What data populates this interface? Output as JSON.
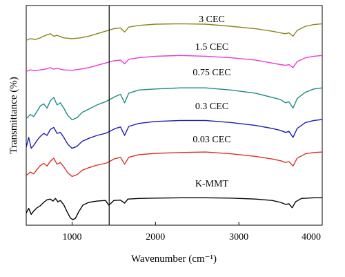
{
  "chart_data": {
    "type": "line",
    "title": "",
    "xlabel": "Wavenumber (cm⁻¹)",
    "ylabel": "Transmittance (%)",
    "xlim": [
      450,
      4000
    ],
    "x_ticks": [
      1000,
      2000,
      3000,
      4000
    ],
    "x_tick_labels": [
      "1000",
      "2000",
      "3000",
      "4000"
    ],
    "grid": false,
    "legend": "none",
    "reference_line_x": 1445,
    "series": [
      {
        "name": "K-MMT",
        "color": "#000000",
        "points": [
          [
            450,
            0.2
          ],
          [
            480,
            0.34
          ],
          [
            510,
            0.16
          ],
          [
            540,
            0.26
          ],
          [
            580,
            0.36
          ],
          [
            620,
            0.42
          ],
          [
            660,
            0.52
          ],
          [
            700,
            0.6
          ],
          [
            740,
            0.62
          ],
          [
            770,
            0.56
          ],
          [
            800,
            0.64
          ],
          [
            830,
            0.54
          ],
          [
            860,
            0.58
          ],
          [
            900,
            0.45
          ],
          [
            940,
            0.24
          ],
          [
            980,
            0.05
          ],
          [
            1010,
            0.0
          ],
          [
            1040,
            0.04
          ],
          [
            1080,
            0.24
          ],
          [
            1130,
            0.44
          ],
          [
            1200,
            0.52
          ],
          [
            1300,
            0.56
          ],
          [
            1400,
            0.58
          ],
          [
            1440,
            0.44
          ],
          [
            1460,
            0.48
          ],
          [
            1500,
            0.58
          ],
          [
            1580,
            0.59
          ],
          [
            1630,
            0.5
          ],
          [
            1670,
            0.62
          ],
          [
            1800,
            0.64
          ],
          [
            2000,
            0.65
          ],
          [
            2300,
            0.66
          ],
          [
            2600,
            0.66
          ],
          [
            2900,
            0.65
          ],
          [
            3200,
            0.62
          ],
          [
            3400,
            0.58
          ],
          [
            3500,
            0.52
          ],
          [
            3560,
            0.46
          ],
          [
            3600,
            0.48
          ],
          [
            3640,
            0.36
          ],
          [
            3680,
            0.54
          ],
          [
            3750,
            0.64
          ],
          [
            3900,
            0.66
          ],
          [
            4000,
            0.66
          ]
        ]
      },
      {
        "name": "0.03 CEC",
        "color": "#d8312a",
        "points": [
          [
            450,
            0.22
          ],
          [
            500,
            0.3
          ],
          [
            540,
            0.26
          ],
          [
            580,
            0.36
          ],
          [
            620,
            0.45
          ],
          [
            660,
            0.5
          ],
          [
            700,
            0.44
          ],
          [
            740,
            0.55
          ],
          [
            780,
            0.62
          ],
          [
            820,
            0.48
          ],
          [
            860,
            0.52
          ],
          [
            900,
            0.42
          ],
          [
            950,
            0.28
          ],
          [
            1000,
            0.2
          ],
          [
            1060,
            0.24
          ],
          [
            1120,
            0.34
          ],
          [
            1200,
            0.4
          ],
          [
            1300,
            0.46
          ],
          [
            1400,
            0.5
          ],
          [
            1450,
            0.54
          ],
          [
            1500,
            0.6
          ],
          [
            1580,
            0.64
          ],
          [
            1630,
            0.48
          ],
          [
            1680,
            0.64
          ],
          [
            1800,
            0.7
          ],
          [
            2000,
            0.73
          ],
          [
            2300,
            0.75
          ],
          [
            2600,
            0.76
          ],
          [
            2900,
            0.72
          ],
          [
            3200,
            0.66
          ],
          [
            3400,
            0.6
          ],
          [
            3500,
            0.56
          ],
          [
            3560,
            0.52
          ],
          [
            3600,
            0.54
          ],
          [
            3650,
            0.44
          ],
          [
            3700,
            0.62
          ],
          [
            3800,
            0.72
          ],
          [
            3900,
            0.75
          ],
          [
            4000,
            0.76
          ]
        ]
      },
      {
        "name": "0.3 CEC",
        "color": "#1c1cb8",
        "points": [
          [
            450,
            0.26
          ],
          [
            480,
            0.46
          ],
          [
            510,
            0.24
          ],
          [
            540,
            0.3
          ],
          [
            580,
            0.4
          ],
          [
            620,
            0.48
          ],
          [
            660,
            0.54
          ],
          [
            700,
            0.5
          ],
          [
            740,
            0.62
          ],
          [
            780,
            0.66
          ],
          [
            820,
            0.54
          ],
          [
            860,
            0.56
          ],
          [
            900,
            0.46
          ],
          [
            950,
            0.32
          ],
          [
            1000,
            0.24
          ],
          [
            1060,
            0.28
          ],
          [
            1120,
            0.38
          ],
          [
            1200,
            0.44
          ],
          [
            1300,
            0.5
          ],
          [
            1400,
            0.54
          ],
          [
            1450,
            0.58
          ],
          [
            1520,
            0.64
          ],
          [
            1580,
            0.67
          ],
          [
            1630,
            0.5
          ],
          [
            1680,
            0.68
          ],
          [
            1800,
            0.74
          ],
          [
            2000,
            0.78
          ],
          [
            2300,
            0.8
          ],
          [
            2600,
            0.8
          ],
          [
            2900,
            0.76
          ],
          [
            3200,
            0.7
          ],
          [
            3400,
            0.64
          ],
          [
            3500,
            0.6
          ],
          [
            3560,
            0.56
          ],
          [
            3600,
            0.58
          ],
          [
            3650,
            0.46
          ],
          [
            3700,
            0.64
          ],
          [
            3800,
            0.76
          ],
          [
            3900,
            0.8
          ],
          [
            4000,
            0.82
          ]
        ]
      },
      {
        "name": "0.75 CEC",
        "color": "#1a8a86",
        "points": [
          [
            450,
            0.3
          ],
          [
            500,
            0.38
          ],
          [
            540,
            0.34
          ],
          [
            580,
            0.44
          ],
          [
            620,
            0.54
          ],
          [
            660,
            0.58
          ],
          [
            700,
            0.5
          ],
          [
            740,
            0.64
          ],
          [
            780,
            0.7
          ],
          [
            820,
            0.56
          ],
          [
            860,
            0.6
          ],
          [
            900,
            0.5
          ],
          [
            950,
            0.36
          ],
          [
            1000,
            0.28
          ],
          [
            1060,
            0.32
          ],
          [
            1120,
            0.42
          ],
          [
            1200,
            0.48
          ],
          [
            1300,
            0.56
          ],
          [
            1400,
            0.62
          ],
          [
            1450,
            0.66
          ],
          [
            1520,
            0.72
          ],
          [
            1580,
            0.76
          ],
          [
            1630,
            0.6
          ],
          [
            1680,
            0.78
          ],
          [
            1800,
            0.84
          ],
          [
            2000,
            0.86
          ],
          [
            2300,
            0.88
          ],
          [
            2600,
            0.88
          ],
          [
            2900,
            0.84
          ],
          [
            3200,
            0.78
          ],
          [
            3400,
            0.7
          ],
          [
            3500,
            0.66
          ],
          [
            3560,
            0.6
          ],
          [
            3600,
            0.62
          ],
          [
            3650,
            0.5
          ],
          [
            3700,
            0.68
          ],
          [
            3800,
            0.8
          ],
          [
            3900,
            0.86
          ],
          [
            4000,
            0.88
          ]
        ]
      },
      {
        "name": "1.5 CEC",
        "color": "#e838d6",
        "points": [
          [
            450,
            0.52
          ],
          [
            500,
            0.56
          ],
          [
            560,
            0.54
          ],
          [
            620,
            0.56
          ],
          [
            680,
            0.58
          ],
          [
            740,
            0.62
          ],
          [
            780,
            0.58
          ],
          [
            820,
            0.6
          ],
          [
            900,
            0.56
          ],
          [
            1000,
            0.55
          ],
          [
            1100,
            0.58
          ],
          [
            1200,
            0.62
          ],
          [
            1300,
            0.68
          ],
          [
            1400,
            0.74
          ],
          [
            1500,
            0.8
          ],
          [
            1580,
            0.82
          ],
          [
            1630,
            0.72
          ],
          [
            1680,
            0.84
          ],
          [
            1800,
            0.88
          ],
          [
            2000,
            0.92
          ],
          [
            2300,
            0.94
          ],
          [
            2600,
            0.92
          ],
          [
            2900,
            0.88
          ],
          [
            3200,
            0.82
          ],
          [
            3400,
            0.74
          ],
          [
            3500,
            0.7
          ],
          [
            3560,
            0.68
          ],
          [
            3600,
            0.7
          ],
          [
            3650,
            0.62
          ],
          [
            3700,
            0.78
          ],
          [
            3800,
            0.88
          ],
          [
            3900,
            0.92
          ],
          [
            4000,
            0.94
          ]
        ]
      },
      {
        "name": "3 CEC",
        "color": "#8a8418",
        "points": [
          [
            450,
            0.56
          ],
          [
            500,
            0.6
          ],
          [
            560,
            0.58
          ],
          [
            620,
            0.62
          ],
          [
            680,
            0.68
          ],
          [
            740,
            0.72
          ],
          [
            780,
            0.66
          ],
          [
            820,
            0.68
          ],
          [
            900,
            0.62
          ],
          [
            1000,
            0.6
          ],
          [
            1100,
            0.62
          ],
          [
            1200,
            0.66
          ],
          [
            1300,
            0.72
          ],
          [
            1400,
            0.78
          ],
          [
            1500,
            0.84
          ],
          [
            1580,
            0.86
          ],
          [
            1630,
            0.76
          ],
          [
            1680,
            0.88
          ],
          [
            1800,
            0.92
          ],
          [
            2000,
            0.95
          ],
          [
            2300,
            0.96
          ],
          [
            2600,
            0.95
          ],
          [
            2900,
            0.9
          ],
          [
            3200,
            0.84
          ],
          [
            3400,
            0.78
          ],
          [
            3500,
            0.74
          ],
          [
            3560,
            0.72
          ],
          [
            3600,
            0.74
          ],
          [
            3650,
            0.66
          ],
          [
            3700,
            0.8
          ],
          [
            3800,
            0.9
          ],
          [
            3900,
            0.94
          ],
          [
            4000,
            0.96
          ]
        ]
      }
    ]
  }
}
